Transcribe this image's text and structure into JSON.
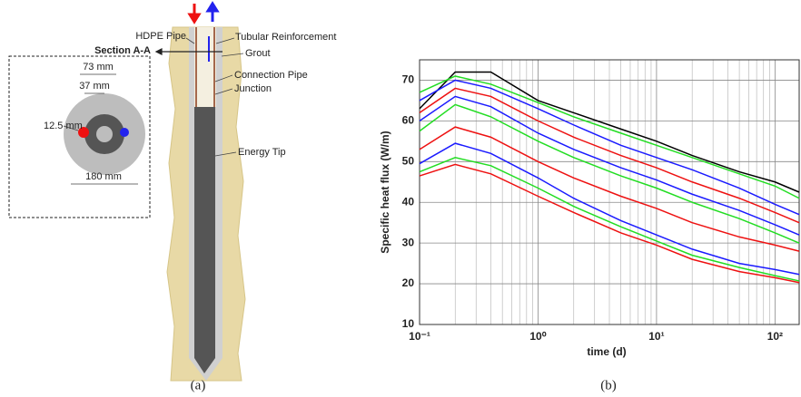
{
  "diagram": {
    "labels": {
      "hdpe_pipe": "HDPE Pipe",
      "tubular_reinforcement": "Tubular Reinforcement",
      "section": "Section A-A",
      "grout": "Grout",
      "connection_pipe": "Connection Pipe",
      "junction": "Junction",
      "energy_tip": "Energy Tip",
      "d73": "73 mm",
      "d37": "37 mm",
      "d12": "12.5 mm",
      "d180": "180 mm"
    },
    "caption": "(a)"
  },
  "chart_data": {
    "type": "line",
    "caption": "(b)",
    "xlabel": "time (d)",
    "ylabel": "Specific heat flux (W/m)",
    "log_x": true,
    "grid": true,
    "minor_grid": true,
    "xlim": [
      0.1,
      160
    ],
    "ylim": [
      10,
      75
    ],
    "xticks": [
      {
        "value": 0.1,
        "label": "10⁻¹"
      },
      {
        "value": 1,
        "label": "10⁰"
      },
      {
        "value": 10,
        "label": "10¹"
      },
      {
        "value": 100,
        "label": "10²"
      }
    ],
    "yticks": [
      10,
      20,
      30,
      40,
      50,
      60,
      70
    ],
    "x": [
      0.1,
      0.2,
      0.4,
      1,
      2,
      5,
      10,
      20,
      50,
      100,
      160
    ],
    "series": [
      {
        "color": "#000000",
        "values": [
          63,
          72,
          72,
          65,
          62,
          58,
          55,
          51.5,
          47.5,
          45,
          42.5
        ]
      },
      {
        "color": "#22dd22",
        "values": [
          67,
          71,
          69,
          64.5,
          61,
          57,
          54,
          51,
          47,
          44,
          41
        ]
      },
      {
        "color": "#1a1aff",
        "values": [
          65,
          70,
          68,
          63,
          59,
          54,
          51,
          48,
          43.5,
          39.5,
          37
        ]
      },
      {
        "color": "#ee1111",
        "values": [
          62,
          68,
          66,
          60,
          56,
          51.5,
          48.5,
          45,
          41,
          37.5,
          35
        ]
      },
      {
        "color": "#1a1aff",
        "values": [
          60,
          66,
          63.5,
          57,
          53,
          48.5,
          45.5,
          42,
          38,
          34.5,
          32
        ]
      },
      {
        "color": "#22dd22",
        "values": [
          57.5,
          64,
          61,
          55,
          51,
          46.5,
          43.5,
          40,
          36,
          32.5,
          30
        ]
      },
      {
        "color": "#ee1111",
        "values": [
          53,
          58.5,
          56,
          50,
          46,
          41.5,
          38.5,
          35,
          31.5,
          29.5,
          28
        ]
      },
      {
        "color": "#1a1aff",
        "values": [
          49.5,
          54.5,
          52,
          46,
          41,
          35.5,
          32,
          28.5,
          25,
          23.5,
          22.3
        ]
      },
      {
        "color": "#22dd22",
        "values": [
          47.5,
          51,
          49,
          43.5,
          39,
          34,
          30.5,
          27,
          24,
          22,
          20.7
        ]
      },
      {
        "color": "#ee1111",
        "values": [
          46.5,
          49.3,
          47,
          41.5,
          37.5,
          32.5,
          29.5,
          26,
          23,
          21.5,
          20.3
        ]
      }
    ]
  }
}
